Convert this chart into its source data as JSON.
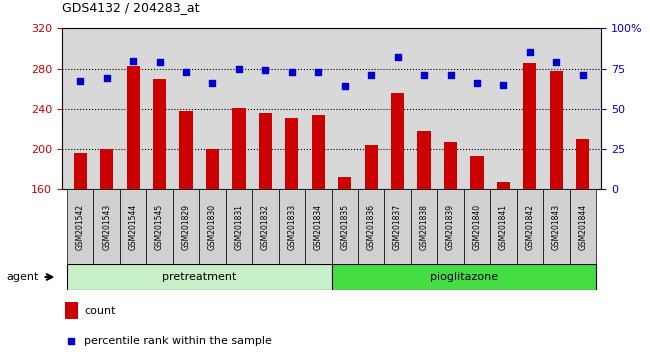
{
  "title": "GDS4132 / 204283_at",
  "samples": [
    "GSM201542",
    "GSM201543",
    "GSM201544",
    "GSM201545",
    "GSM201829",
    "GSM201830",
    "GSM201831",
    "GSM201832",
    "GSM201833",
    "GSM201834",
    "GSM201835",
    "GSM201836",
    "GSM201837",
    "GSM201838",
    "GSM201839",
    "GSM201840",
    "GSM201841",
    "GSM201842",
    "GSM201843",
    "GSM201844"
  ],
  "counts": [
    196,
    200,
    283,
    270,
    238,
    200,
    241,
    236,
    231,
    234,
    172,
    204,
    256,
    218,
    207,
    193,
    167,
    286,
    278,
    210
  ],
  "percentiles": [
    67,
    69,
    80,
    79,
    73,
    66,
    75,
    74,
    73,
    73,
    64,
    71,
    82,
    71,
    71,
    66,
    65,
    85,
    79,
    71
  ],
  "n_pretreatment": 10,
  "ylim_left": [
    160,
    320
  ],
  "ylim_right": [
    0,
    100
  ],
  "yticks_left": [
    160,
    200,
    240,
    280,
    320
  ],
  "yticks_right": [
    0,
    25,
    50,
    75,
    100
  ],
  "ytick_labels_right": [
    "0",
    "25",
    "50",
    "75",
    "100%"
  ],
  "bar_color": "#cc0000",
  "scatter_color": "#0000cc",
  "bar_bottom": 160,
  "bg_color": "#d8d8d8",
  "pretreat_color": "#c8f0c8",
  "pioglit_color": "#44dd44",
  "agent_label": "agent",
  "pretreat_label": "pretreatment",
  "pioglit_label": "pioglitazone",
  "legend_count_label": "count",
  "legend_pct_label": "percentile rank within the sample"
}
